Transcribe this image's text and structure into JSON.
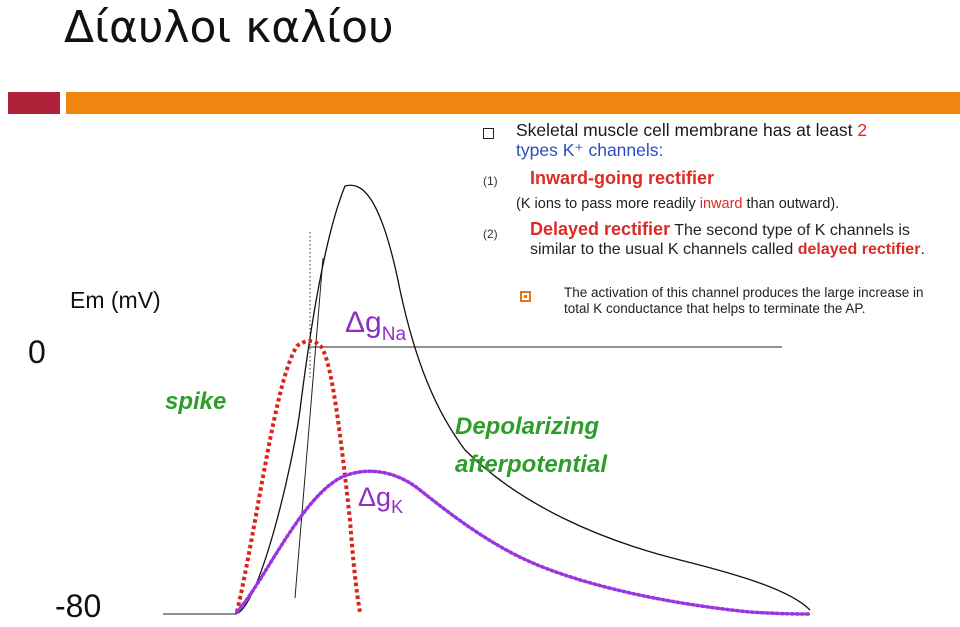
{
  "title": "Δίαυλοι καλίου",
  "colors": {
    "accent_red": "#b0223a",
    "accent_orange": "#f0860f",
    "text_red": "#d92c24",
    "text_blue": "#2b4dbf",
    "label_green": "#2e9e2a",
    "label_purple": "#8e2fc4",
    "gna_curve": "#d9241c",
    "gk_curve": "#9b35e0"
  },
  "bullet": {
    "text_a": "Skeletal muscle cell membrane has at least ",
    "count": "2",
    "text_b": "types K⁺ channels:"
  },
  "items": [
    {
      "number": "(1)",
      "title": "Inward-going rectifier",
      "note_a": "(K ions to pass more readily ",
      "note_highlight": "inward",
      "note_b": " than outward)."
    },
    {
      "number": "(2)",
      "title": "Delayed rectifier",
      "text": " The second type of K channels is similar to the usual K channels called ",
      "highlight": "delayed rectifier",
      "end": "."
    }
  ],
  "sub_bullet": "The activation of this channel produces the large increase in total K conductance that helps to terminate the AP.",
  "graph": {
    "y_zero_label": "0",
    "y_axis_label": "Em (mV)",
    "y_min_label": "-80",
    "spike_label": "spike",
    "gna_label": "Δg",
    "gna_sub": "Na",
    "gk_label": "Δg",
    "gk_sub": "K",
    "afterpotential_line1": "Depolarizing",
    "afterpotential_line2": "afterpotential"
  }
}
